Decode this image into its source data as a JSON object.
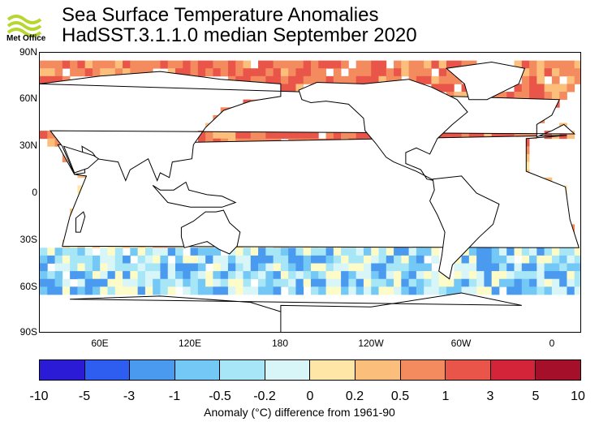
{
  "header": {
    "logo_text": "Met Office",
    "title_line1": "Sea Surface Temperature Anomalies",
    "title_line2": "HadSST.3.1.1.0 median September 2020"
  },
  "map": {
    "lat_labels": [
      "90N",
      "60N",
      "30N",
      "0",
      "30S",
      "60S",
      "90S"
    ],
    "lon_labels": [
      "60E",
      "120E",
      "180",
      "120W",
      "60W",
      "0"
    ],
    "land_color": "#ffffff",
    "missing_color": "#ffffff"
  },
  "colorbar": {
    "tick_labels": [
      "-10",
      "-5",
      "-3",
      "-1",
      "-0.5",
      "-0.2",
      "0",
      "0.2",
      "0.5",
      "1",
      "3",
      "5",
      "10"
    ],
    "colors": [
      "#2b1bd6",
      "#2e5ef0",
      "#4a9af0",
      "#74c8f5",
      "#a7e6f7",
      "#d8f6f7",
      "#fdfcc8",
      "#fde6a6",
      "#fcbf7b",
      "#f48b5e",
      "#ea5549",
      "#d4243a",
      "#a50f2a"
    ],
    "title": "Anomaly (°C) difference from 1961-90"
  }
}
